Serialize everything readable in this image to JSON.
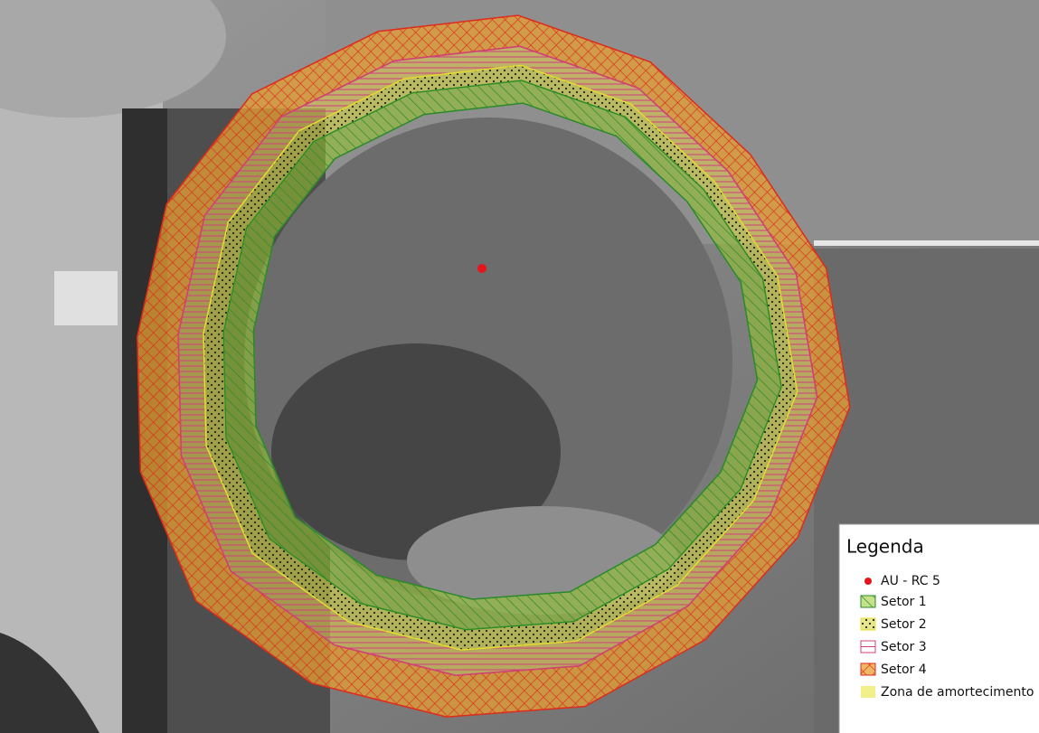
{
  "legend": {
    "title": "Legenda",
    "items": [
      {
        "label": "AU -  RC 5"
      },
      {
        "label": "Setor 1"
      },
      {
        "label": "Setor 2"
      },
      {
        "label": "Setor 3"
      },
      {
        "label": "Setor 4"
      },
      {
        "label": "Zona de amortecimento"
      }
    ]
  }
}
